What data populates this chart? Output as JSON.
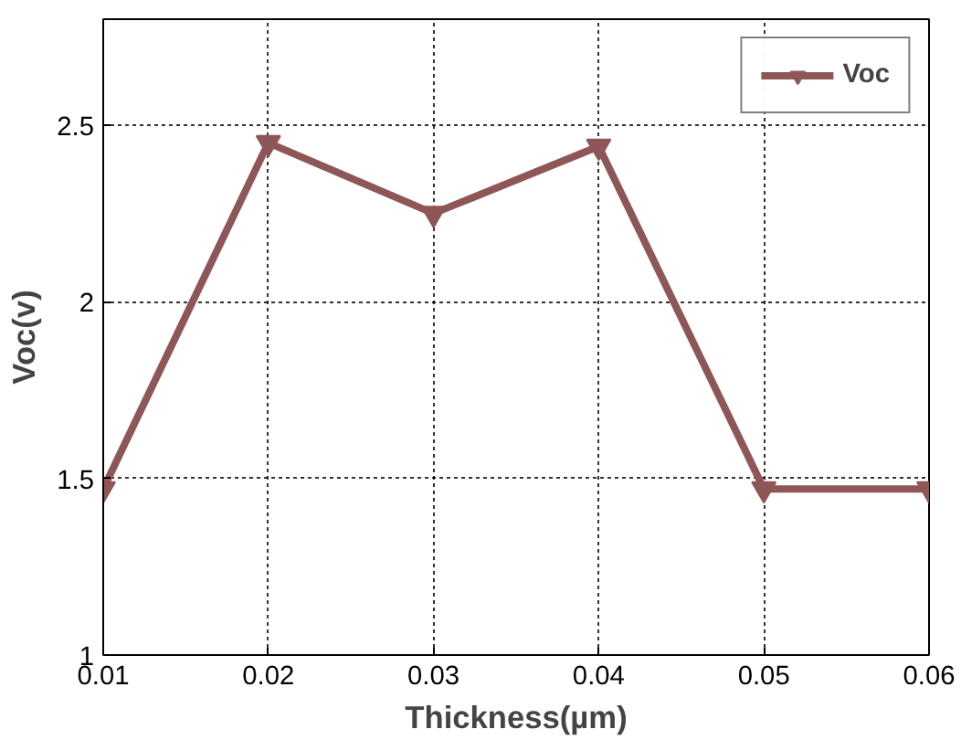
{
  "chart_data": {
    "type": "line",
    "xlabel": "Thickness(µm)",
    "ylabel": "Voc(v)",
    "x": [
      0.01,
      0.02,
      0.03,
      0.04,
      0.05,
      0.06
    ],
    "series": [
      {
        "name": "Voc",
        "color": "#8e5656",
        "values": [
          1.47,
          2.45,
          2.25,
          2.44,
          1.47,
          1.47
        ]
      }
    ],
    "xlim": [
      0.01,
      0.06
    ],
    "ylim": [
      1,
      2.8
    ],
    "xticks": [
      0.01,
      0.02,
      0.03,
      0.04,
      0.05,
      0.06
    ],
    "yticks": [
      1,
      1.5,
      2,
      2.5
    ],
    "grid": true,
    "legend": "top right",
    "marker": "triangle",
    "line_style": "solid"
  }
}
